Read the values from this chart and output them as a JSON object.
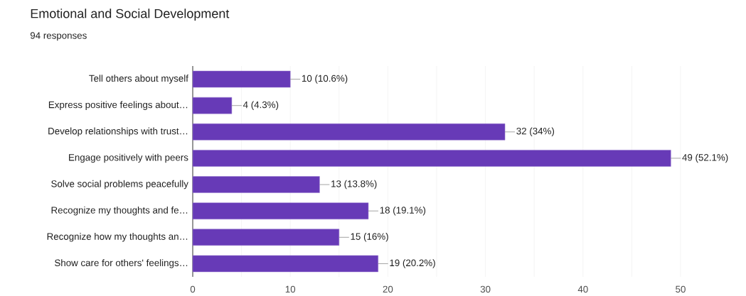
{
  "chart_data": {
    "type": "bar",
    "orientation": "horizontal",
    "title": "Emotional and Social Development",
    "subtitle": "94 responses",
    "categories": [
      "Tell others about myself",
      "Express positive feelings about…",
      "Develop relationships with trust…",
      "Engage positively with peers",
      "Solve social problems peacefully",
      "Recognize my thoughts and fe…",
      "Recognize how my thoughts an…",
      "Show care for others' feelings…"
    ],
    "values": [
      10,
      4,
      32,
      49,
      13,
      18,
      15,
      19
    ],
    "value_labels": [
      "10 (10.6%)",
      "4 (4.3%)",
      "32 (34%)",
      "49 (52.1%)",
      "13 (13.8%)",
      "18 (19.1%)",
      "15 (16%)",
      "19 (20.2%)"
    ],
    "color": "#673ab7",
    "xlim": [
      0,
      50
    ],
    "xticks": [
      0,
      {
        "value": 5,
        "label": null
      },
      10,
      {
        "value": 15,
        "label": null
      },
      20,
      {
        "value": 25,
        "label": null
      },
      30,
      {
        "value": 35,
        "label": null
      },
      40,
      {
        "value": 45,
        "label": null
      },
      50
    ],
    "grid": "x"
  }
}
